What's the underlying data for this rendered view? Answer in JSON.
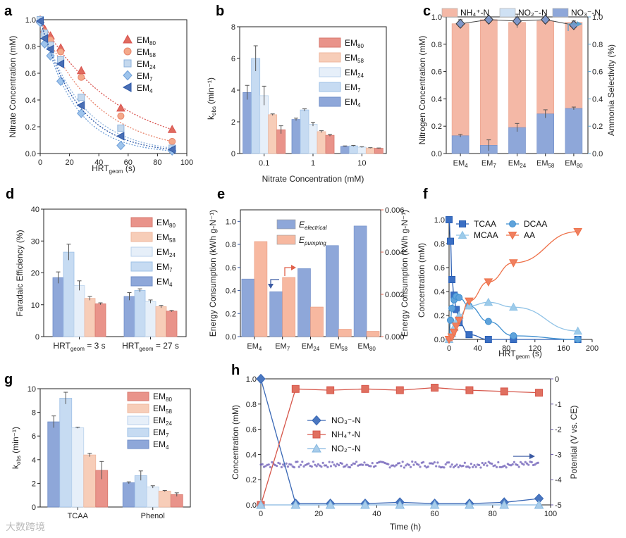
{
  "figure": {
    "watermark": "大数跨境"
  },
  "chart_data": [
    {
      "panel": "a",
      "type": "scatter",
      "xlabel": "HRT",
      "xlabel_sub": "geom",
      "xlabel_unit": " (s)",
      "ylabel": "Nitrate Concentration (mM)",
      "xlim": [
        0,
        100
      ],
      "ylim": [
        0,
        1.0
      ],
      "xticks": [
        "0",
        "20",
        "40",
        "60",
        "80",
        "100"
      ],
      "yticks": [
        "0.0",
        "0.2",
        "0.4",
        "0.6",
        "0.8",
        "1.0"
      ],
      "legend": [
        {
          "base": "EM",
          "sub": "80",
          "color": "#e06b5f",
          "marker": "triangle"
        },
        {
          "base": "EM",
          "sub": "58",
          "color": "#f4a98a",
          "marker": "circle"
        },
        {
          "base": "EM",
          "sub": "24",
          "color": "#c5d9ee",
          "marker": "square"
        },
        {
          "base": "EM",
          "sub": "7",
          "color": "#9ec4ec",
          "marker": "diamond"
        },
        {
          "base": "EM",
          "sub": "4",
          "color": "#4a6fb5",
          "marker": "lefttri"
        }
      ],
      "series": [
        {
          "name": "EM80",
          "x": [
            0,
            3,
            7,
            14,
            28,
            55,
            90
          ],
          "y": [
            1.0,
            0.93,
            0.88,
            0.79,
            0.62,
            0.34,
            0.18
          ]
        },
        {
          "name": "EM58",
          "x": [
            0,
            3,
            7,
            14,
            28,
            55,
            90
          ],
          "y": [
            1.0,
            0.91,
            0.85,
            0.76,
            0.57,
            0.28,
            0.09
          ]
        },
        {
          "name": "EM24",
          "x": [
            0,
            3,
            7,
            14,
            28,
            55,
            90
          ],
          "y": [
            1.0,
            0.9,
            0.81,
            0.7,
            0.42,
            0.19,
            0.04
          ]
        },
        {
          "name": "EM7",
          "x": [
            0,
            3,
            7,
            14,
            28,
            55,
            90
          ],
          "y": [
            0.98,
            0.82,
            0.73,
            0.54,
            0.3,
            0.06,
            0.02
          ]
        },
        {
          "name": "EM4",
          "x": [
            0,
            3,
            7,
            14,
            28,
            55,
            90
          ],
          "y": [
            0.99,
            0.86,
            0.78,
            0.67,
            0.36,
            0.13,
            0.03
          ]
        }
      ]
    },
    {
      "panel": "b",
      "type": "bar",
      "xlabel": "Nitrate Concentration (mM)",
      "ylabel_base": "k",
      "ylabel_sub": "obs",
      "ylabel_unit": " (min⁻¹)",
      "ylim": [
        0,
        8
      ],
      "yticks": [
        "0",
        "2",
        "4",
        "6",
        "8"
      ],
      "categories": [
        "0.1",
        "1",
        "10"
      ],
      "legend": [
        {
          "base": "EM",
          "sub": "80",
          "color": "#e9938a"
        },
        {
          "base": "EM",
          "sub": "58",
          "color": "#f7cdb8"
        },
        {
          "base": "EM",
          "sub": "24",
          "color": "#e6eff9"
        },
        {
          "base": "EM",
          "sub": "7",
          "color": "#c6dbf2"
        },
        {
          "base": "EM",
          "sub": "4",
          "color": "#8ea7d9"
        }
      ],
      "series": [
        {
          "name": "EM4",
          "values": [
            3.85,
            2.15,
            0.45
          ],
          "errors": [
            0.45,
            0.08,
            0.03
          ]
        },
        {
          "name": "EM7",
          "values": [
            6.0,
            2.75,
            0.48
          ],
          "errors": [
            0.8,
            0.07,
            0.03
          ]
        },
        {
          "name": "EM24",
          "values": [
            3.65,
            1.85,
            0.4
          ],
          "errors": [
            0.6,
            0.12,
            0.03
          ]
        },
        {
          "name": "EM58",
          "values": [
            2.45,
            1.38,
            0.35
          ],
          "errors": [
            0.05,
            0.06,
            0.02
          ]
        },
        {
          "name": "EM80",
          "values": [
            1.5,
            1.15,
            0.33
          ],
          "errors": [
            0.25,
            0.06,
            0.02
          ]
        }
      ]
    },
    {
      "panel": "c",
      "type": "bar",
      "ylabel": "Nitrogen Concentration (mM)",
      "ylabel_right": "Ammonia Selectivity (%)",
      "ylim": [
        0,
        1.0
      ],
      "y2lim": [
        0,
        1.0
      ],
      "yticks": [
        "0.0",
        "0.2",
        "0.4",
        "0.6",
        "0.8",
        "1.0"
      ],
      "y2ticks": [
        "0.0",
        "0.2",
        "0.4",
        "0.6",
        "0.8",
        "1.0"
      ],
      "categories": [
        {
          "base": "EM",
          "sub": "4"
        },
        {
          "base": "EM",
          "sub": "7"
        },
        {
          "base": "EM",
          "sub": "24"
        },
        {
          "base": "EM",
          "sub": "58"
        },
        {
          "base": "EM",
          "sub": "80"
        }
      ],
      "legend": [
        {
          "text": "NH₄⁺-N",
          "color": "#f4b8a6"
        },
        {
          "text": "NO₂⁻-N",
          "color": "#cfe1f4"
        },
        {
          "text": "NO₃⁻-N",
          "color": "#8ea7d9"
        }
      ],
      "nitrate": [
        0.13,
        0.06,
        0.19,
        0.29,
        0.33
      ],
      "nitrate_err": [
        0.01,
        0.04,
        0.03,
        0.03,
        0.01
      ],
      "ammonium_total": [
        0.95,
        0.98,
        0.96,
        0.97,
        0.96
      ],
      "selectivity": [
        0.95,
        0.98,
        0.97,
        0.98,
        0.94
      ],
      "selectivity_err": [
        0.03,
        0.02,
        0.05,
        0.02,
        0.03
      ]
    },
    {
      "panel": "d",
      "type": "bar",
      "ylabel": "Faradaic Efficiency (%)",
      "ylim": [
        0,
        40
      ],
      "yticks": [
        "0",
        "10",
        "20",
        "30",
        "40"
      ],
      "categories": [
        {
          "base": "HRT",
          "sub": "geom",
          "rest": " = 3 s"
        },
        {
          "base": "HRT",
          "sub": "geom",
          "rest": " = 27 s"
        }
      ],
      "legend": [
        {
          "base": "EM",
          "sub": "80",
          "color": "#e9938a"
        },
        {
          "base": "EM",
          "sub": "58",
          "color": "#f7cdb8"
        },
        {
          "base": "EM",
          "sub": "24",
          "color": "#e6eff9"
        },
        {
          "base": "EM",
          "sub": "7",
          "color": "#c6dbf2"
        },
        {
          "base": "EM",
          "sub": "4",
          "color": "#8ea7d9"
        }
      ],
      "series": [
        {
          "name": "EM4",
          "values": [
            18.5,
            12.6
          ],
          "errors": [
            1.8,
            1.2
          ]
        },
        {
          "name": "EM7",
          "values": [
            26.5,
            14.5
          ],
          "errors": [
            2.5,
            0.5
          ]
        },
        {
          "name": "EM24",
          "values": [
            16.0,
            11.0
          ],
          "errors": [
            1.5,
            0.5
          ]
        },
        {
          "name": "EM58",
          "values": [
            12.0,
            9.4
          ],
          "errors": [
            0.6,
            0.4
          ]
        },
        {
          "name": "EM80",
          "values": [
            10.3,
            8.0
          ],
          "errors": [
            0.3,
            0.2
          ]
        }
      ]
    },
    {
      "panel": "e",
      "type": "bar",
      "ylabel": "Energy Consumption (kWh g-N⁻¹)",
      "ylabel_right": "Energy Consumption (kWh g-N⁻¹)",
      "ylim": [
        0,
        1.1
      ],
      "y2lim": [
        0,
        0.006
      ],
      "yticks": [
        "0.0",
        "0.2",
        "0.4",
        "0.6",
        "0.8",
        "1.0"
      ],
      "y2ticks": [
        "0.000",
        "0.002",
        "0.004",
        "0.006"
      ],
      "categories": [
        {
          "base": "EM",
          "sub": "4"
        },
        {
          "base": "EM",
          "sub": "7"
        },
        {
          "base": "EM",
          "sub": "24"
        },
        {
          "base": "EM",
          "sub": "58"
        },
        {
          "base": "EM",
          "sub": "80"
        }
      ],
      "legend": [
        {
          "base": "E",
          "sub": "electrical",
          "color": "#8ea7d9"
        },
        {
          "base": "E",
          "sub": "pumping",
          "color": "#f7b8a0"
        }
      ],
      "electrical": [
        0.5,
        0.39,
        0.59,
        0.79,
        0.96
      ],
      "pumping": [
        0.0045,
        0.0028,
        0.0014,
        0.00035,
        0.00025
      ]
    },
    {
      "panel": "f",
      "type": "line",
      "xlabel": "HRT",
      "xlabel_sub": "geom",
      "xlabel_unit": " (s)",
      "ylabel": "Concentration (mM)",
      "xlim": [
        0,
        200
      ],
      "ylim": [
        0,
        1.0
      ],
      "xticks": [
        "0",
        "40",
        "80",
        "120",
        "160",
        "200"
      ],
      "yticks": [
        "0.0",
        "0.2",
        "0.4",
        "0.6",
        "0.8",
        "1.0"
      ],
      "legend": [
        {
          "text": "TCAA",
          "color": "#3a6fc4",
          "marker": "square"
        },
        {
          "text": "DCAA",
          "color": "#5fa3db",
          "marker": "circle"
        },
        {
          "text": "MCAA",
          "color": "#9ccbea",
          "marker": "triangle"
        },
        {
          "text": "AA",
          "color": "#f08060",
          "marker": "downtri"
        }
      ],
      "series": [
        {
          "name": "TCAA",
          "x": [
            0,
            2,
            4,
            7,
            10,
            14,
            28,
            55,
            90,
            180
          ],
          "y": [
            1.0,
            0.82,
            0.5,
            0.37,
            0.25,
            0.14,
            0.04,
            0.0,
            0.0,
            0.0
          ]
        },
        {
          "name": "DCAA",
          "x": [
            0,
            2,
            4,
            7,
            10,
            14,
            28,
            55,
            90,
            180
          ],
          "y": [
            0.0,
            0.16,
            0.26,
            0.33,
            0.36,
            0.35,
            0.28,
            0.15,
            0.03,
            0.0
          ]
        },
        {
          "name": "MCAA",
          "x": [
            0,
            4,
            7,
            10,
            14,
            28,
            55,
            90,
            180
          ],
          "y": [
            0.0,
            0.05,
            0.1,
            0.15,
            0.2,
            0.28,
            0.31,
            0.27,
            0.07
          ]
        },
        {
          "name": "AA",
          "x": [
            0,
            4,
            7,
            10,
            14,
            28,
            55,
            90,
            180
          ],
          "y": [
            0.0,
            0.02,
            0.06,
            0.11,
            0.16,
            0.32,
            0.48,
            0.64,
            0.9
          ]
        }
      ]
    },
    {
      "panel": "g",
      "type": "bar",
      "ylabel_base": "k",
      "ylabel_sub": "obs",
      "ylabel_unit": " (min⁻¹)",
      "ylim": [
        0,
        10
      ],
      "yticks": [
        "0",
        "2",
        "4",
        "6",
        "8",
        "10"
      ],
      "categories": [
        "TCAA",
        "Phenol"
      ],
      "legend": [
        {
          "base": "EM",
          "sub": "80",
          "color": "#e9938a"
        },
        {
          "base": "EM",
          "sub": "58",
          "color": "#f7cdb8"
        },
        {
          "base": "EM",
          "sub": "24",
          "color": "#e6eff9"
        },
        {
          "base": "EM",
          "sub": "7",
          "color": "#c6dbf2"
        },
        {
          "base": "EM",
          "sub": "4",
          "color": "#8ea7d9"
        }
      ],
      "series": [
        {
          "name": "EM4",
          "values": [
            7.2,
            2.05
          ],
          "errors": [
            0.5,
            0.08
          ]
        },
        {
          "name": "EM7",
          "values": [
            9.2,
            2.65
          ],
          "errors": [
            0.5,
            0.4
          ]
        },
        {
          "name": "EM24",
          "values": [
            6.7,
            1.7
          ],
          "errors": [
            0.05,
            0.1
          ]
        },
        {
          "name": "EM58",
          "values": [
            4.4,
            1.35
          ],
          "errors": [
            0.15,
            0.05
          ]
        },
        {
          "name": "EM80",
          "values": [
            3.1,
            1.05
          ],
          "errors": [
            0.75,
            0.15
          ]
        }
      ]
    },
    {
      "panel": "h",
      "type": "line",
      "xlabel": "Time (h)",
      "ylabel": "Concentration (mM)",
      "ylabel_right": "Potential (V vs. CE)",
      "xlim": [
        0,
        100
      ],
      "ylim": [
        0,
        1.0
      ],
      "y2lim": [
        -5,
        0
      ],
      "xticks": [
        "0",
        "20",
        "40",
        "60",
        "80",
        "100"
      ],
      "yticks": [
        "0.0",
        "0.2",
        "0.4",
        "0.6",
        "0.8",
        "1.0"
      ],
      "y2ticks": [
        "0",
        "-1",
        "-2",
        "-3",
        "-4",
        "-5"
      ],
      "legend": [
        {
          "text": "NO₃⁻-N",
          "color": "#4a77c0",
          "marker": "diamond"
        },
        {
          "text": "NH₄⁺-N",
          "color": "#e07060",
          "marker": "square"
        },
        {
          "text": "NO₂⁻-N",
          "color": "#a9cdea",
          "marker": "triangle"
        }
      ],
      "series": [
        {
          "name": "NO3-N",
          "x": [
            0,
            12,
            24,
            36,
            48,
            60,
            72,
            84,
            96
          ],
          "y": [
            1.0,
            0.01,
            0.01,
            0.01,
            0.02,
            0.01,
            0.01,
            0.02,
            0.05
          ]
        },
        {
          "name": "NH4-N",
          "x": [
            0,
            12,
            24,
            36,
            48,
            60,
            72,
            84,
            96
          ],
          "y": [
            0.0,
            0.92,
            0.91,
            0.92,
            0.91,
            0.93,
            0.91,
            0.9,
            0.89
          ]
        },
        {
          "name": "NO2-N",
          "x": [
            0,
            12,
            24,
            36,
            48,
            60,
            72,
            84,
            96
          ],
          "y": [
            0.0,
            0.0,
            0.0,
            0.0,
            0.0,
            0.0,
            0.0,
            0.0,
            0.0
          ]
        }
      ],
      "potential": {
        "x_start": 0,
        "x_end": 96,
        "mean": -3.4,
        "spread": 0.12
      }
    }
  ]
}
